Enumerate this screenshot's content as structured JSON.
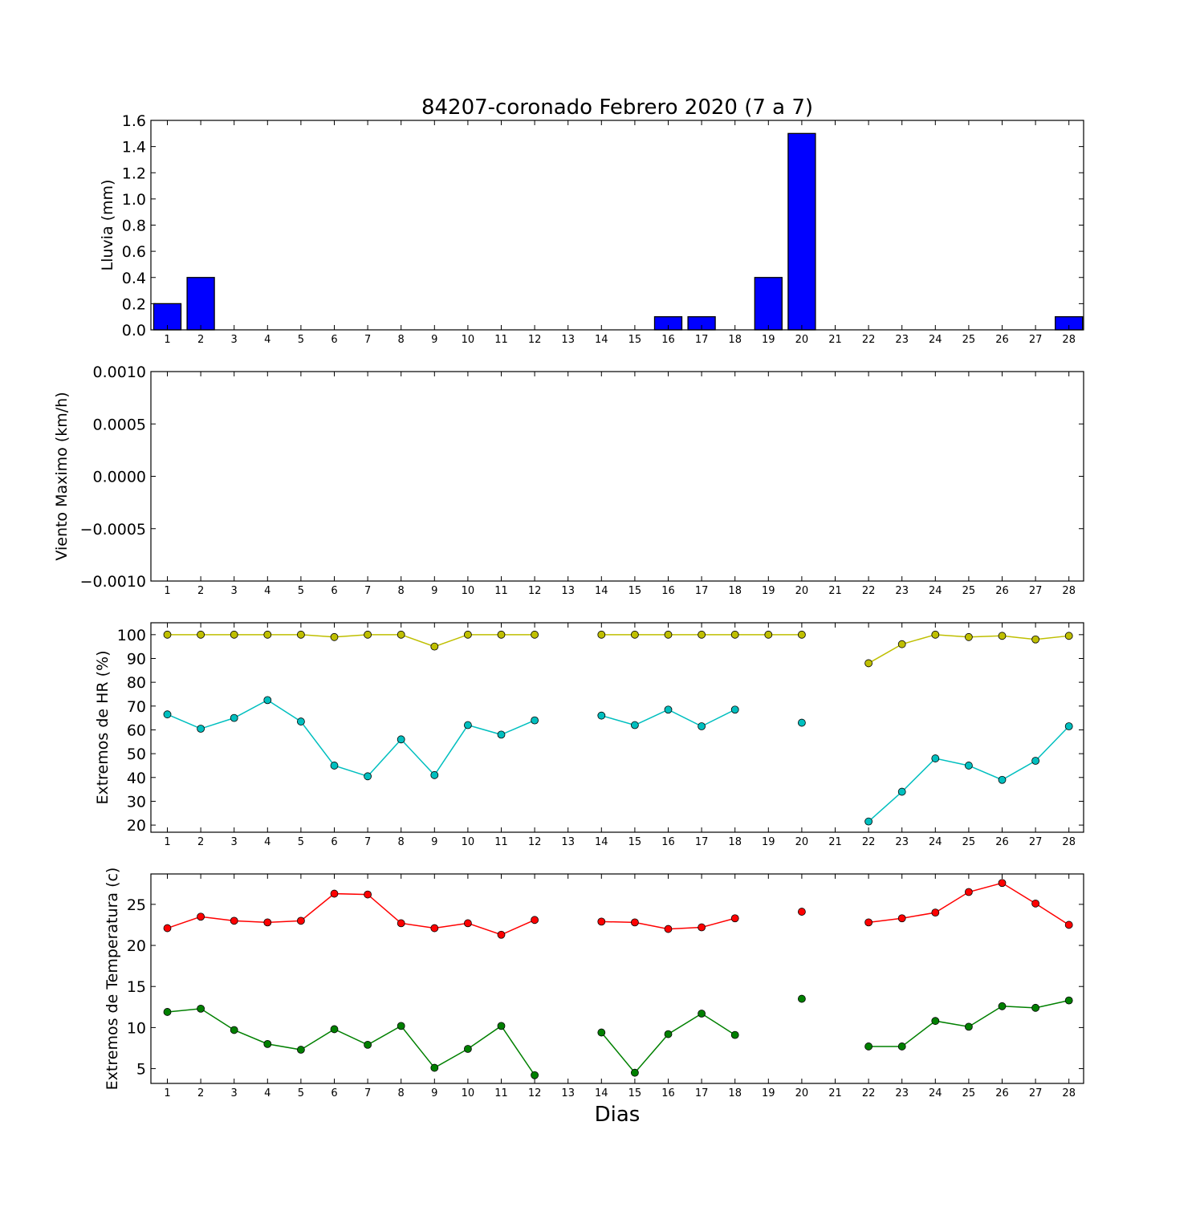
{
  "title": "84207-coronado Febrero 2020  (7 a 7)",
  "xlabel": "Dias",
  "colors": {
    "rain": "#0000ff",
    "hr_max": "#bfbf00",
    "hr_min": "#00bfbf",
    "temp_max": "#ff0000",
    "temp_min": "#008000"
  },
  "chart_data": [
    {
      "type": "bar",
      "ylabel": "Lluvia (mm)",
      "ylim": [
        0,
        1.6
      ],
      "yticks": [
        "0.0",
        "0.2",
        "0.4",
        "0.6",
        "0.8",
        "1.0",
        "1.2",
        "1.4",
        "1.6"
      ],
      "categories": [
        1,
        2,
        3,
        4,
        5,
        6,
        7,
        8,
        9,
        10,
        11,
        12,
        13,
        14,
        15,
        16,
        17,
        18,
        19,
        20,
        21,
        22,
        23,
        24,
        25,
        26,
        27,
        28
      ],
      "values": [
        0.2,
        0.4,
        0,
        0,
        0,
        0,
        0,
        0,
        0,
        0,
        0,
        0,
        0,
        0,
        0,
        0.1,
        0.1,
        0,
        0.4,
        1.5,
        0,
        0,
        0,
        0,
        0,
        0,
        0,
        0.1
      ]
    },
    {
      "type": "line",
      "ylabel": "Viento Maximo (km/h)",
      "ylim": [
        -0.001,
        0.001
      ],
      "yticks": [
        "−0.0010",
        "−0.0005",
        "0.0000",
        "0.0005",
        "0.0010"
      ],
      "categories": [
        1,
        2,
        3,
        4,
        5,
        6,
        7,
        8,
        9,
        10,
        11,
        12,
        13,
        14,
        15,
        16,
        17,
        18,
        19,
        20,
        21,
        22,
        23,
        24,
        25,
        26,
        27,
        28
      ],
      "series": []
    },
    {
      "type": "line",
      "ylabel": "Extremos de HR (%)",
      "ylim": [
        17,
        105
      ],
      "yticks": [
        "20",
        "30",
        "40",
        "50",
        "60",
        "70",
        "80",
        "90",
        "100"
      ],
      "categories": [
        1,
        2,
        3,
        4,
        5,
        6,
        7,
        8,
        9,
        10,
        11,
        12,
        13,
        14,
        15,
        16,
        17,
        18,
        19,
        20,
        21,
        22,
        23,
        24,
        25,
        26,
        27,
        28
      ],
      "series": [
        {
          "color": "#bfbf00",
          "values": [
            100,
            100,
            100,
            100,
            100,
            99,
            100,
            100,
            95,
            100,
            100,
            100,
            null,
            100,
            100,
            100,
            100,
            100,
            100,
            100,
            null,
            88,
            96,
            100,
            99,
            99.5,
            98,
            99.5
          ]
        },
        {
          "color": "#00bfbf",
          "values": [
            66.5,
            60.5,
            65,
            72.5,
            63.5,
            45,
            40.5,
            56,
            41,
            62,
            58,
            64,
            null,
            66,
            62,
            68.5,
            61.5,
            68.5,
            null,
            63,
            null,
            21.5,
            34,
            48,
            45,
            39,
            47,
            61.5
          ]
        }
      ]
    },
    {
      "type": "line",
      "ylabel": "Extremos de Temperatura (c)",
      "ylim": [
        3.2,
        28.7
      ],
      "yticks": [
        "5",
        "10",
        "15",
        "20",
        "25"
      ],
      "categories": [
        1,
        2,
        3,
        4,
        5,
        6,
        7,
        8,
        9,
        10,
        11,
        12,
        13,
        14,
        15,
        16,
        17,
        18,
        19,
        20,
        21,
        22,
        23,
        24,
        25,
        26,
        27,
        28
      ],
      "series": [
        {
          "color": "#ff0000",
          "values": [
            22.1,
            23.5,
            23,
            22.8,
            23,
            26.3,
            26.2,
            22.7,
            22.1,
            22.7,
            21.3,
            23.1,
            null,
            22.9,
            22.8,
            22,
            22.2,
            23.3,
            null,
            24.1,
            null,
            22.8,
            23.3,
            24,
            26.5,
            27.6,
            25.1,
            22.5
          ]
        },
        {
          "color": "#008000",
          "values": [
            11.9,
            12.3,
            9.7,
            8,
            7.3,
            9.8,
            7.9,
            10.2,
            5.1,
            7.4,
            10.2,
            4.2,
            null,
            9.4,
            4.5,
            9.2,
            11.7,
            9.1,
            null,
            13.5,
            null,
            7.7,
            7.7,
            10.8,
            10.1,
            12.6,
            12.4,
            13.3
          ]
        }
      ]
    }
  ]
}
